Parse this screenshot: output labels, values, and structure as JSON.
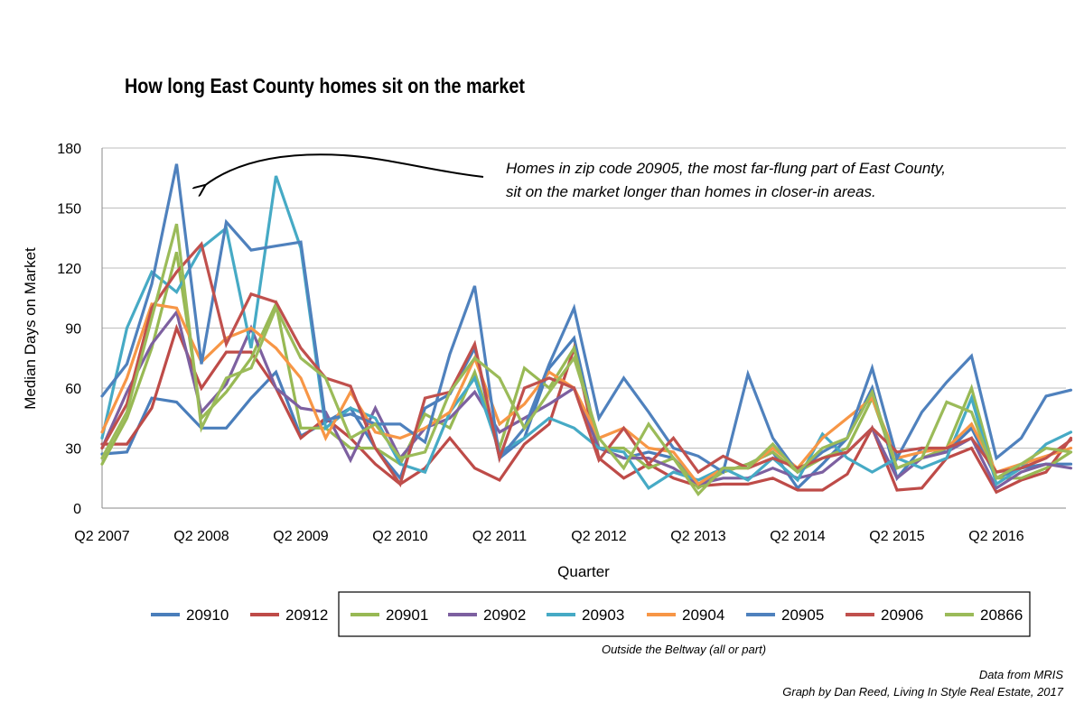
{
  "chart_data": {
    "type": "line",
    "title": "How long East County homes sit on the market",
    "xlabel": "Quarter",
    "ylabel": "Median Days on Market",
    "ylim": [
      0,
      180
    ],
    "yticks": [
      0,
      30,
      60,
      90,
      120,
      150,
      180
    ],
    "grid": "horizontal",
    "legend_placement": "bottom",
    "x_tick_labels": [
      {
        "index": 0,
        "label": "Q2 2007"
      },
      {
        "index": 4,
        "label": "Q2 2008"
      },
      {
        "index": 8,
        "label": "Q2 2009"
      },
      {
        "index": 12,
        "label": "Q2 2010"
      },
      {
        "index": 16,
        "label": "Q2 2011"
      },
      {
        "index": 20,
        "label": "Q2 2012"
      },
      {
        "index": 24,
        "label": "Q2 2013"
      },
      {
        "index": 28,
        "label": "Q2 2014"
      },
      {
        "index": 32,
        "label": "Q2 2015"
      },
      {
        "index": 36,
        "label": "Q2 2016"
      }
    ],
    "x": [
      "Q2 2007",
      "Q3 2007",
      "Q4 2007",
      "Q1 2008",
      "Q2 2008",
      "Q3 2008",
      "Q4 2008",
      "Q1 2009",
      "Q2 2009",
      "Q3 2009",
      "Q4 2009",
      "Q1 2010",
      "Q2 2010",
      "Q3 2010",
      "Q4 2010",
      "Q1 2011",
      "Q2 2011",
      "Q3 2011",
      "Q4 2011",
      "Q1 2012",
      "Q2 2012",
      "Q3 2012",
      "Q4 2012",
      "Q1 2013",
      "Q2 2013",
      "Q3 2013",
      "Q4 2013",
      "Q1 2014",
      "Q2 2014",
      "Q3 2014",
      "Q4 2014",
      "Q1 2015",
      "Q2 2015",
      "Q3 2015",
      "Q4 2015",
      "Q1 2016",
      "Q2 2016",
      "Q3 2016",
      "Q4 2016",
      "Q1 2017"
    ],
    "series": [
      {
        "name": "20910",
        "color": "#4a7ebb",
        "values": [
          27,
          28,
          55,
          53,
          40,
          40,
          55,
          68,
          36,
          43,
          50,
          30,
          15,
          50,
          57,
          80,
          25,
          35,
          70,
          85,
          30,
          25,
          28,
          25,
          12,
          18,
          22,
          28,
          10,
          22,
          35,
          60,
          15,
          30,
          28,
          40,
          15,
          20,
          22,
          22
        ]
      },
      {
        "name": "20912",
        "color": "#be4b48",
        "values": [
          32,
          32,
          50,
          90,
          60,
          78,
          78,
          60,
          35,
          45,
          35,
          22,
          12,
          20,
          35,
          20,
          14,
          32,
          42,
          80,
          25,
          15,
          22,
          15,
          11,
          12,
          12,
          15,
          9,
          9,
          17,
          40,
          9,
          10,
          25,
          30,
          8,
          14,
          18,
          35
        ]
      },
      {
        "name": "20901",
        "color": "#98b954",
        "values": [
          22,
          45,
          80,
          128,
          45,
          58,
          75,
          102,
          40,
          40,
          30,
          30,
          22,
          47,
          40,
          68,
          30,
          70,
          60,
          80,
          30,
          30,
          20,
          25,
          10,
          18,
          22,
          28,
          18,
          25,
          30,
          55,
          20,
          25,
          30,
          60,
          15,
          15,
          20,
          28
        ]
      },
      {
        "name": "20902",
        "color": "#7d60a0",
        "values": [
          30,
          58,
          82,
          98,
          48,
          62,
          90,
          60,
          50,
          48,
          24,
          50,
          25,
          40,
          45,
          58,
          38,
          45,
          52,
          60,
          30,
          25,
          25,
          20,
          12,
          15,
          15,
          20,
          15,
          18,
          28,
          40,
          15,
          25,
          28,
          35,
          10,
          18,
          22,
          20
        ]
      },
      {
        "name": "20903",
        "color": "#46aac5",
        "values": [
          35,
          90,
          118,
          108,
          130,
          140,
          80,
          166,
          130,
          40,
          50,
          45,
          22,
          18,
          48,
          65,
          28,
          35,
          45,
          40,
          30,
          28,
          10,
          18,
          14,
          20,
          14,
          25,
          14,
          37,
          25,
          18,
          25,
          20,
          25,
          55,
          12,
          20,
          32,
          38
        ]
      },
      {
        "name": "20904",
        "color": "#f79646",
        "values": [
          38,
          65,
          102,
          100,
          73,
          85,
          90,
          80,
          65,
          35,
          58,
          38,
          35,
          40,
          48,
          75,
          42,
          52,
          68,
          60,
          35,
          40,
          30,
          28,
          12,
          20,
          20,
          30,
          20,
          35,
          45,
          55,
          25,
          28,
          30,
          42,
          18,
          22,
          26,
          30
        ]
      },
      {
        "name": "20905",
        "color": "#4f81bd",
        "values": [
          56,
          72,
          112,
          172,
          72,
          143,
          129,
          131,
          133,
          44,
          47,
          42,
          42,
          33,
          77,
          111,
          25,
          40,
          72,
          100,
          45,
          65,
          48,
          30,
          26,
          18,
          67,
          35,
          18,
          28,
          35,
          70,
          25,
          48,
          63,
          76,
          25,
          35,
          56,
          59
        ]
      },
      {
        "name": "20906",
        "color": "#c0504d",
        "values": [
          30,
          52,
          100,
          118,
          132,
          82,
          107,
          103,
          80,
          65,
          61,
          30,
          12,
          55,
          58,
          82,
          25,
          60,
          65,
          60,
          24,
          40,
          22,
          35,
          18,
          26,
          20,
          25,
          20,
          25,
          28,
          40,
          28,
          30,
          30,
          35,
          18,
          20,
          25,
          34
        ]
      },
      {
        "name": "20866",
        "color": "#9bbb59",
        "values": [
          25,
          48,
          95,
          142,
          40,
          65,
          70,
          100,
          75,
          65,
          35,
          42,
          25,
          28,
          58,
          75,
          65,
          40,
          58,
          75,
          35,
          20,
          42,
          25,
          7,
          20,
          20,
          32,
          18,
          30,
          35,
          58,
          20,
          25,
          53,
          48,
          15,
          22,
          30,
          28
        ]
      }
    ],
    "annotation": {
      "line1": "Homes in zip code 20905, the most far-flung part of East County,",
      "line2": "sit on the market longer than homes in closer-in areas."
    },
    "legend_group_label": "Outside the Beltway (all or part)",
    "credits": {
      "line1": "Data from MRIS",
      "line2": "Graph by Dan Reed, Living In Style Real Estate, 2017"
    }
  }
}
